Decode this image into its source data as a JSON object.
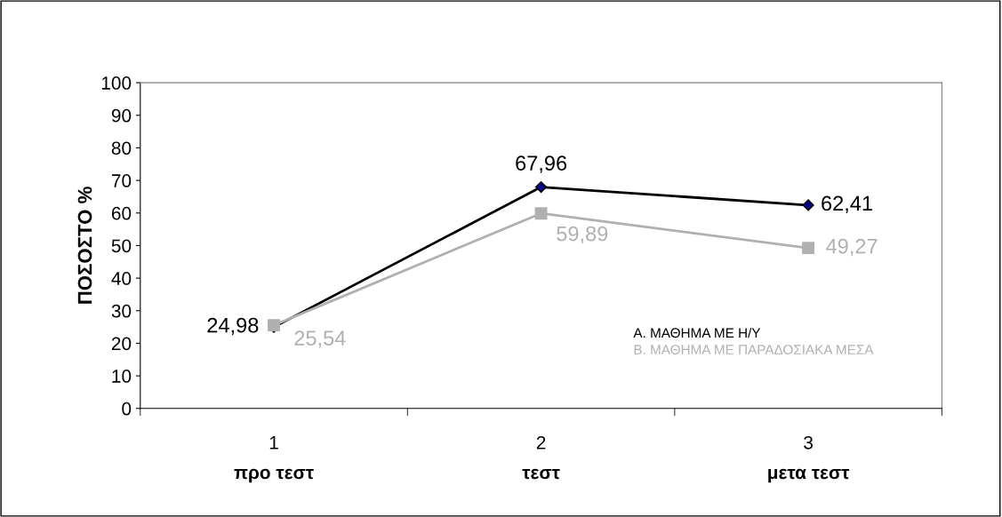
{
  "chart_data": {
    "type": "line",
    "ylabel": "ΠΟΣΟΣΤΟ %",
    "categories": [
      "1\nπρο τεστ",
      "2\nτεστ",
      "3\nμετα τεστ"
    ],
    "series": [
      {
        "name": "Α. ΜΑΘΗΜΑ ΜΕ Η/Υ",
        "color": "#000000",
        "marker": "diamond",
        "values": [
          24.98,
          67.96,
          62.41
        ],
        "value_labels": [
          "24,98",
          "67,96",
          "62,41"
        ]
      },
      {
        "name": "Β. ΜΑΘΗΜΑ ΜΕ ΠΑΡΑΔΟΣΙΑΚΑ ΜΕΣΑ",
        "color": "#b0b0b0",
        "marker": "square",
        "values": [
          25.54,
          59.89,
          49.27
        ],
        "value_labels": [
          "25,54",
          "59,89",
          "49,27"
        ]
      }
    ],
    "ylim": [
      0,
      100
    ],
    "yticks": [
      0,
      10,
      20,
      30,
      40,
      50,
      60,
      70,
      80,
      90,
      100
    ],
    "grid": false,
    "legend": "bottom right"
  }
}
